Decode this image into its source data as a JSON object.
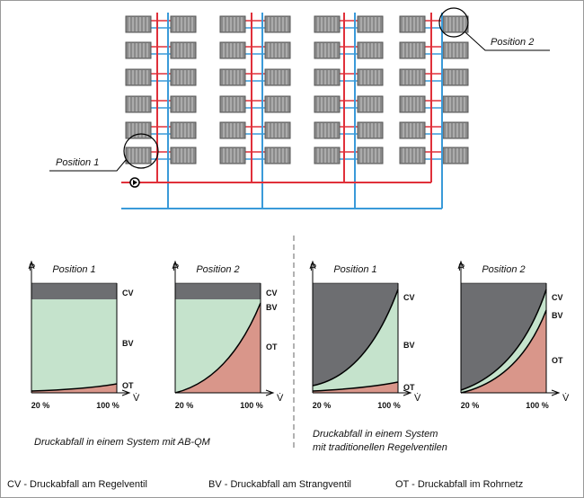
{
  "schematic": {
    "position_1": "Position 1",
    "position_2": "Position 2"
  },
  "diagrams": [
    {
      "axis_y": "P",
      "title": "Position 1",
      "cv": "CV",
      "bv": "BV",
      "ot": "OT",
      "axis_x": "V̇",
      "x_min": "20 %",
      "x_max": "100 %"
    },
    {
      "axis_y": "P",
      "title": "Position 2",
      "cv": "CV",
      "bv": "BV",
      "ot": "OT",
      "axis_x": "V̇",
      "x_min": "20 %",
      "x_max": "100 %"
    },
    {
      "axis_y": "P",
      "title": "Position 1",
      "cv": "CV",
      "bv": "BV",
      "ot": "OT",
      "axis_x": "V̇",
      "x_min": "20 %",
      "x_max": "100 %"
    },
    {
      "axis_y": "P",
      "title": "Position 2",
      "cv": "CV",
      "bv": "BV",
      "ot": "OT",
      "axis_x": "V̇",
      "x_min": "20 %",
      "x_max": "100 %"
    }
  ],
  "captions": {
    "left": "Druckabfall in einem System mit AB-QM",
    "right": [
      "Druckabfall in einem System",
      "mit traditionellen Regelventilen"
    ]
  },
  "legend": [
    "CV - Druckabfall am Regelventil",
    "BV - Druckabfall am Strangventil",
    "OT - Druckabfall im Rohrnetz"
  ]
}
